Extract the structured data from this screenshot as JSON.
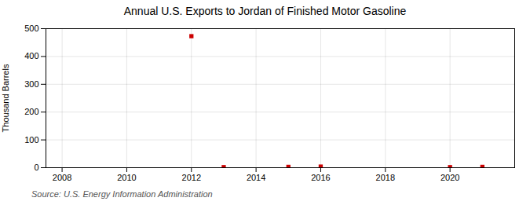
{
  "chart_data": {
    "type": "scatter",
    "title": "Annual U.S. Exports to Jordan of Finished Motor Gasoline",
    "ylabel": "Thousand Barrels",
    "annotations": [
      "Source: U.S. Energy Information Administration"
    ],
    "x": [
      2012,
      2013,
      2015,
      2016,
      2020,
      2021
    ],
    "values": [
      473,
      2,
      3,
      4,
      2,
      3
    ],
    "color": "#cc0000",
    "marker": "square",
    "xlim": [
      2007.5,
      2022.0
    ],
    "xticks": [
      2008,
      2010,
      2012,
      2014,
      2016,
      2018,
      2020
    ],
    "ylim": [
      0,
      500
    ],
    "yticks": [
      0,
      100,
      200,
      300,
      400,
      500
    ],
    "grid": true
  }
}
